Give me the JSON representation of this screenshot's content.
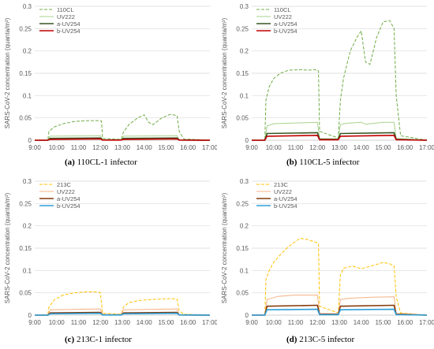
{
  "chart_data": [
    {
      "type": "line",
      "caption_label": "(a)",
      "caption_text": "110CL-1 infector",
      "ylabel": "SARS-CoV-2 concentration (quanta/m³)",
      "ylim": [
        0,
        0.3
      ],
      "yticks": [
        "0",
        "0.05",
        "0.1",
        "0.15",
        "0.2",
        "0.25",
        "0.3"
      ],
      "xticks": [
        "9:00",
        "10:00",
        "11:00",
        "12:00",
        "13:00",
        "14:00",
        "15:00",
        "16:00",
        "17:00"
      ],
      "grid": true,
      "legend": "top-left",
      "series": [
        {
          "name": "110CL",
          "color": "#70ad47",
          "dash": true,
          "width": 1,
          "x": [
            9.0,
            9.6,
            9.65,
            9.9,
            10.3,
            10.8,
            11.4,
            11.9,
            12.05,
            12.1,
            12.95,
            13.05,
            13.3,
            13.7,
            14.0,
            14.2,
            14.4,
            14.8,
            15.2,
            15.5,
            15.6,
            15.8,
            17.0
          ],
          "y": [
            0,
            0,
            0.02,
            0.03,
            0.037,
            0.042,
            0.044,
            0.044,
            0.043,
            0.004,
            0.002,
            0.018,
            0.035,
            0.05,
            0.057,
            0.04,
            0.035,
            0.05,
            0.058,
            0.055,
            0.02,
            0.003,
            0
          ]
        },
        {
          "name": "UV222",
          "color": "#a9d18e",
          "dash": false,
          "width": 1,
          "x": [
            9.0,
            9.6,
            9.7,
            12.0,
            12.1,
            12.95,
            13.05,
            15.5,
            15.6,
            17.0
          ],
          "y": [
            0,
            0,
            0.009,
            0.01,
            0.001,
            0.001,
            0.009,
            0.01,
            0.001,
            0
          ]
        },
        {
          "name": "a-UV254",
          "color": "#375623",
          "dash": false,
          "width": 1.6,
          "x": [
            9.0,
            9.6,
            9.7,
            12.0,
            12.1,
            12.95,
            13.05,
            15.5,
            15.6,
            17.0
          ],
          "y": [
            0,
            0,
            0.004,
            0.005,
            0.0005,
            0.0005,
            0.004,
            0.005,
            0.0005,
            0
          ]
        },
        {
          "name": "b-UV254",
          "color": "#c00000",
          "dash": false,
          "width": 1.6,
          "x": [
            9.0,
            9.6,
            9.7,
            12.0,
            12.1,
            12.95,
            13.05,
            15.5,
            15.6,
            17.0
          ],
          "y": [
            0,
            0,
            0.002,
            0.003,
            0.0003,
            0.0003,
            0.002,
            0.003,
            0.0003,
            0
          ]
        }
      ]
    },
    {
      "type": "line",
      "caption_label": "(b)",
      "caption_text": "110CL-5 infector",
      "ylabel": "SARS-CoV-2 concentration (quanta/m³)",
      "ylim": [
        0,
        0.3
      ],
      "yticks": [
        "0",
        "0.05",
        "0.1",
        "0.15",
        "0.2",
        "0.25",
        "0.3"
      ],
      "xticks": [
        "9:00",
        "10:00",
        "11:00",
        "12:00",
        "13:00",
        "14:00",
        "15:00",
        "16:00",
        "17:00"
      ],
      "grid": true,
      "legend": "top-left",
      "series": [
        {
          "name": "110CL",
          "color": "#70ad47",
          "dash": true,
          "width": 1,
          "x": [
            9.0,
            9.6,
            9.65,
            9.8,
            10.0,
            10.3,
            10.7,
            11.2,
            11.6,
            12.0,
            12.05,
            12.1,
            12.95,
            13.05,
            13.2,
            13.5,
            13.8,
            14.0,
            14.2,
            14.4,
            14.7,
            15.0,
            15.3,
            15.5,
            15.6,
            15.8,
            17.0
          ],
          "y": [
            0,
            0,
            0.09,
            0.12,
            0.138,
            0.15,
            0.157,
            0.158,
            0.157,
            0.158,
            0.155,
            0.02,
            0.005,
            0.09,
            0.14,
            0.2,
            0.23,
            0.245,
            0.175,
            0.17,
            0.23,
            0.265,
            0.268,
            0.25,
            0.1,
            0.01,
            0
          ]
        },
        {
          "name": "UV222",
          "color": "#a9d18e",
          "dash": false,
          "width": 1,
          "x": [
            9.0,
            9.6,
            9.7,
            10.0,
            12.0,
            12.1,
            12.95,
            13.05,
            13.3,
            14.0,
            14.2,
            15.0,
            15.5,
            15.6,
            17.0
          ],
          "y": [
            0,
            0,
            0.032,
            0.037,
            0.04,
            0.004,
            0.003,
            0.035,
            0.038,
            0.04,
            0.036,
            0.04,
            0.04,
            0.004,
            0
          ]
        },
        {
          "name": "a-UV254",
          "color": "#375623",
          "dash": false,
          "width": 1.6,
          "x": [
            9.0,
            9.6,
            9.7,
            12.0,
            12.1,
            12.95,
            13.05,
            15.5,
            15.6,
            17.0
          ],
          "y": [
            0,
            0,
            0.015,
            0.017,
            0.002,
            0.002,
            0.015,
            0.017,
            0.002,
            0
          ]
        },
        {
          "name": "b-UV254",
          "color": "#c00000",
          "dash": false,
          "width": 1.6,
          "x": [
            9.0,
            9.6,
            9.7,
            12.0,
            12.1,
            12.95,
            13.05,
            15.5,
            15.6,
            17.0
          ],
          "y": [
            0,
            0,
            0.009,
            0.011,
            0.001,
            0.001,
            0.009,
            0.011,
            0.001,
            0
          ]
        }
      ]
    },
    {
      "type": "line",
      "caption_label": "(c)",
      "caption_text": "213C-1 infector",
      "ylabel": "SARS-CoV-2 concentration (quanta/m³)",
      "ylim": [
        0,
        0.3
      ],
      "yticks": [
        "0",
        "0.05",
        "0.1",
        "0.15",
        "0.2",
        "0.25",
        "0.3"
      ],
      "xticks": [
        "9:00",
        "10:00",
        "11:00",
        "12:00",
        "13:00",
        "14:00",
        "15:00",
        "16:00",
        "17:00"
      ],
      "grid": true,
      "legend": "top-left",
      "series": [
        {
          "name": "213C",
          "color": "#ffc000",
          "dash": true,
          "width": 1,
          "x": [
            9.0,
            9.6,
            9.65,
            9.9,
            10.3,
            10.8,
            11.3,
            11.9,
            12.0,
            12.1,
            12.95,
            13.05,
            13.3,
            13.8,
            14.3,
            14.8,
            15.2,
            15.5,
            15.6,
            15.8,
            17.0
          ],
          "y": [
            0,
            0,
            0.018,
            0.035,
            0.045,
            0.05,
            0.052,
            0.052,
            0.05,
            0.004,
            0.002,
            0.018,
            0.028,
            0.033,
            0.035,
            0.036,
            0.037,
            0.036,
            0.01,
            0.002,
            0
          ]
        },
        {
          "name": "UV222",
          "color": "#f4b183",
          "dash": false,
          "width": 1,
          "x": [
            9.0,
            9.6,
            9.7,
            12.0,
            12.1,
            12.95,
            13.05,
            15.5,
            15.6,
            17.0
          ],
          "y": [
            0,
            0,
            0.012,
            0.014,
            0.001,
            0.001,
            0.012,
            0.014,
            0.001,
            0
          ]
        },
        {
          "name": "a-UV254",
          "color": "#843c0c",
          "dash": false,
          "width": 1.6,
          "x": [
            9.0,
            9.6,
            9.7,
            12.0,
            12.1,
            12.95,
            13.05,
            15.5,
            15.6,
            17.0
          ],
          "y": [
            0,
            0,
            0.005,
            0.006,
            0.0005,
            0.0005,
            0.005,
            0.006,
            0.0005,
            0
          ]
        },
        {
          "name": "b-UV254",
          "color": "#2e9fd8",
          "dash": false,
          "width": 1.6,
          "x": [
            9.0,
            9.6,
            9.7,
            12.0,
            12.1,
            12.95,
            13.05,
            15.5,
            15.6,
            17.0
          ],
          "y": [
            0,
            0,
            0.003,
            0.004,
            0.0003,
            0.0003,
            0.003,
            0.004,
            0.0003,
            0
          ]
        }
      ]
    },
    {
      "type": "line",
      "caption_label": "(d)",
      "caption_text": "213C-5 infector",
      "ylabel": "SARS-CoV-2 concentration (quanta/m³)",
      "ylim": [
        0,
        0.3
      ],
      "yticks": [
        "0",
        "0.05",
        "0.1",
        "0.15",
        "0.2",
        "0.25",
        "0.3"
      ],
      "xticks": [
        "9:00",
        "10:00",
        "11:00",
        "12:00",
        "13:00",
        "14:00",
        "15:00",
        "16:00",
        "17:00"
      ],
      "grid": true,
      "legend": "top-left",
      "series": [
        {
          "name": "213C",
          "color": "#ffc000",
          "dash": true,
          "width": 1,
          "x": [
            9.0,
            9.6,
            9.65,
            9.8,
            10.0,
            10.3,
            10.6,
            11.0,
            11.2,
            11.5,
            11.8,
            12.0,
            12.05,
            12.1,
            12.95,
            13.05,
            13.2,
            13.6,
            14.0,
            14.3,
            14.6,
            15.0,
            15.3,
            15.5,
            15.6,
            15.8,
            17.0
          ],
          "y": [
            0,
            0,
            0.08,
            0.1,
            0.118,
            0.135,
            0.15,
            0.165,
            0.172,
            0.17,
            0.165,
            0.162,
            0.16,
            0.02,
            0.005,
            0.09,
            0.105,
            0.11,
            0.104,
            0.108,
            0.112,
            0.118,
            0.115,
            0.11,
            0.04,
            0.005,
            0
          ]
        },
        {
          "name": "UV222",
          "color": "#f4b183",
          "dash": false,
          "width": 1,
          "x": [
            9.0,
            9.6,
            9.7,
            10.2,
            11.0,
            12.0,
            12.1,
            12.95,
            13.05,
            13.5,
            14.5,
            15.5,
            15.6,
            17.0
          ],
          "y": [
            0,
            0,
            0.035,
            0.042,
            0.045,
            0.045,
            0.004,
            0.003,
            0.035,
            0.038,
            0.04,
            0.041,
            0.004,
            0
          ]
        },
        {
          "name": "a-UV254",
          "color": "#843c0c",
          "dash": false,
          "width": 1.6,
          "x": [
            9.0,
            9.6,
            9.7,
            12.0,
            12.1,
            12.95,
            13.05,
            15.5,
            15.6,
            17.0
          ],
          "y": [
            0,
            0,
            0.02,
            0.022,
            0.002,
            0.002,
            0.02,
            0.022,
            0.002,
            0
          ]
        },
        {
          "name": "b-UV254",
          "color": "#2e9fd8",
          "dash": false,
          "width": 1.6,
          "x": [
            9.0,
            9.6,
            9.7,
            12.0,
            12.1,
            12.95,
            13.05,
            15.5,
            15.6,
            17.0
          ],
          "y": [
            0,
            0,
            0.012,
            0.013,
            0.001,
            0.001,
            0.012,
            0.013,
            0.001,
            0
          ]
        }
      ]
    }
  ]
}
